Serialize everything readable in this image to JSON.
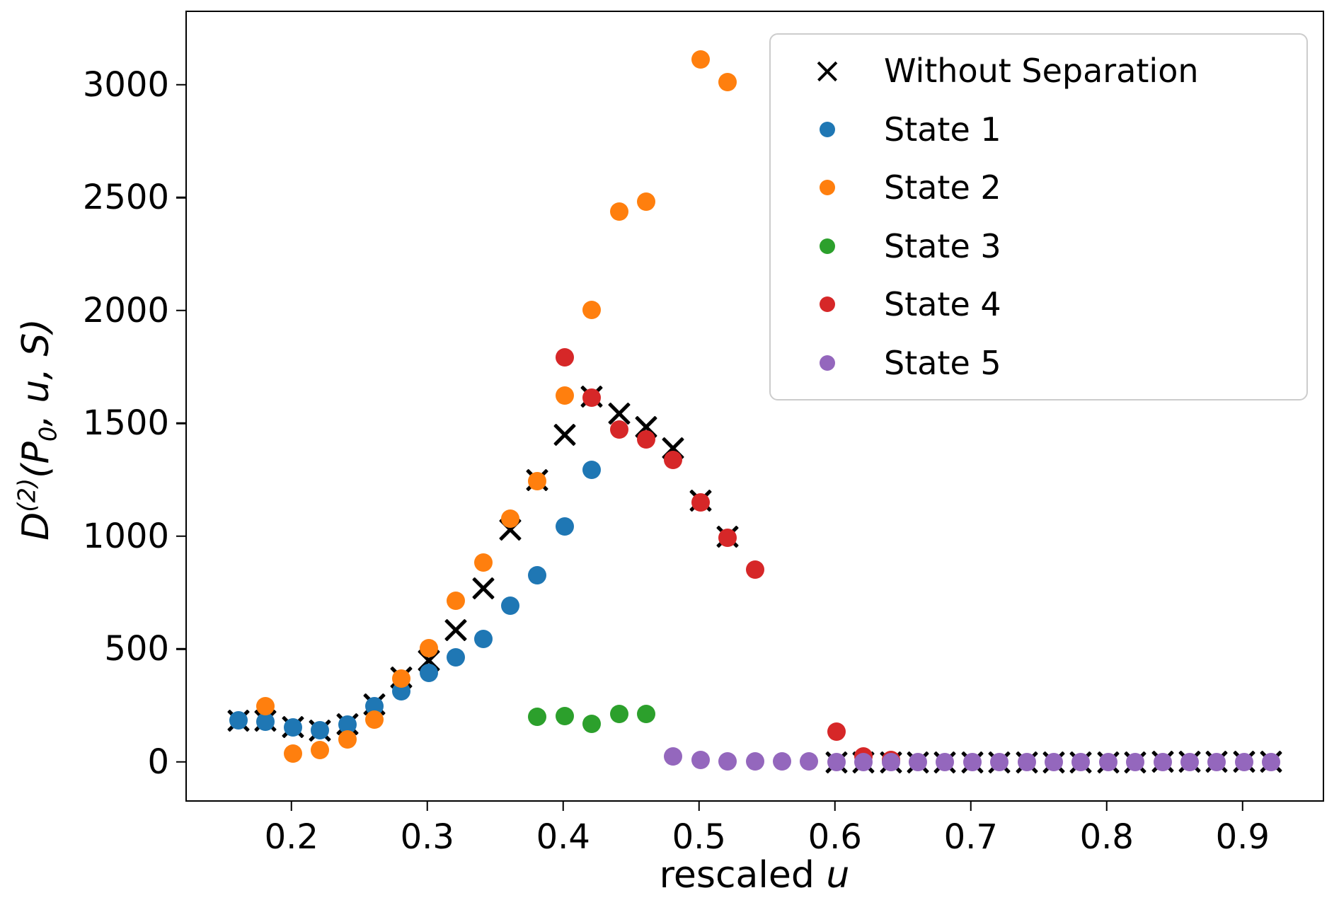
{
  "figure": {
    "background": "#ffffff",
    "frame_color": "#000000"
  },
  "axes": {
    "xlabel": {
      "text": "rescaled ",
      "var": "u"
    },
    "ylabel": {
      "base": "D",
      "sup": "(2)",
      "open": "(P",
      "sub": "0",
      "rest": ", u, S)"
    }
  },
  "legend": {
    "position": "upper right",
    "border_color": "#cccccc",
    "items": [
      {
        "label": "Without Separation",
        "marker": "x",
        "color": "#000000"
      },
      {
        "label": "State 1",
        "marker": "circle",
        "color": "#1f77b4"
      },
      {
        "label": "State 2",
        "marker": "circle",
        "color": "#ff7f0e"
      },
      {
        "label": "State 3",
        "marker": "circle",
        "color": "#2ca02c"
      },
      {
        "label": "State 4",
        "marker": "circle",
        "color": "#d62728"
      },
      {
        "label": "State 5",
        "marker": "circle",
        "color": "#9467bd"
      }
    ]
  },
  "chart_data": {
    "type": "scatter",
    "title": "",
    "xlabel": "rescaled u",
    "ylabel": "D^(2)(P_0, u, S)",
    "grid": false,
    "legend_position": "upper right",
    "xlim": [
      0.122,
      0.96
    ],
    "ylim": [
      -176,
      3329
    ],
    "xticks": [
      0.2,
      0.3,
      0.4,
      0.5,
      0.6,
      0.7,
      0.8,
      0.9
    ],
    "yticks": [
      0,
      500,
      1000,
      1500,
      2000,
      2500,
      3000
    ],
    "series": [
      {
        "name": "Without Separation",
        "marker": "x",
        "color": "#000000",
        "points": [
          [
            0.16,
            190
          ],
          [
            0.18,
            190
          ],
          [
            0.2,
            160
          ],
          [
            0.22,
            145
          ],
          [
            0.24,
            175
          ],
          [
            0.26,
            260
          ],
          [
            0.28,
            380
          ],
          [
            0.3,
            455
          ],
          [
            0.32,
            590
          ],
          [
            0.34,
            775
          ],
          [
            0.36,
            1035
          ],
          [
            0.38,
            1255
          ],
          [
            0.4,
            1455
          ],
          [
            0.42,
            1625
          ],
          [
            0.44,
            1550
          ],
          [
            0.46,
            1490
          ],
          [
            0.48,
            1395
          ],
          [
            0.5,
            1165
          ],
          [
            0.52,
            1005
          ],
          [
            0.6,
            5
          ],
          [
            0.62,
            5
          ],
          [
            0.64,
            5
          ],
          [
            0.66,
            5
          ],
          [
            0.68,
            5
          ],
          [
            0.7,
            5
          ],
          [
            0.72,
            5
          ],
          [
            0.74,
            5
          ],
          [
            0.76,
            5
          ],
          [
            0.78,
            5
          ],
          [
            0.8,
            5
          ],
          [
            0.82,
            5
          ],
          [
            0.84,
            8
          ],
          [
            0.86,
            8
          ],
          [
            0.88,
            8
          ],
          [
            0.9,
            8
          ],
          [
            0.92,
            8
          ]
        ]
      },
      {
        "name": "State 1",
        "marker": "circle",
        "color": "#1f77b4",
        "points": [
          [
            0.16,
            190
          ],
          [
            0.18,
            185
          ],
          [
            0.2,
            158
          ],
          [
            0.22,
            148
          ],
          [
            0.24,
            172
          ],
          [
            0.26,
            255
          ],
          [
            0.28,
            320
          ],
          [
            0.3,
            400
          ],
          [
            0.32,
            470
          ],
          [
            0.34,
            550
          ],
          [
            0.36,
            700
          ],
          [
            0.38,
            835
          ],
          [
            0.4,
            1050
          ],
          [
            0.42,
            1300
          ]
        ]
      },
      {
        "name": "State 2",
        "marker": "circle",
        "color": "#ff7f0e",
        "points": [
          [
            0.18,
            255
          ],
          [
            0.2,
            45
          ],
          [
            0.22,
            60
          ],
          [
            0.24,
            107
          ],
          [
            0.26,
            195
          ],
          [
            0.28,
            375
          ],
          [
            0.3,
            510
          ],
          [
            0.32,
            720
          ],
          [
            0.34,
            890
          ],
          [
            0.36,
            1085
          ],
          [
            0.38,
            1250
          ],
          [
            0.4,
            1630
          ],
          [
            0.42,
            2010
          ],
          [
            0.44,
            2445
          ],
          [
            0.46,
            2490
          ],
          [
            0.5,
            3120
          ],
          [
            0.52,
            3020
          ]
        ]
      },
      {
        "name": "State 3",
        "marker": "circle",
        "color": "#2ca02c",
        "points": [
          [
            0.38,
            205
          ],
          [
            0.4,
            210
          ],
          [
            0.42,
            175
          ],
          [
            0.44,
            220
          ],
          [
            0.46,
            220
          ]
        ]
      },
      {
        "name": "State 4",
        "marker": "circle",
        "color": "#d62728",
        "points": [
          [
            0.4,
            1800
          ],
          [
            0.42,
            1620
          ],
          [
            0.44,
            1480
          ],
          [
            0.46,
            1435
          ],
          [
            0.48,
            1345
          ],
          [
            0.5,
            1155
          ],
          [
            0.52,
            1000
          ],
          [
            0.54,
            860
          ],
          [
            0.6,
            140
          ],
          [
            0.62,
            30
          ],
          [
            0.64,
            15
          ]
        ]
      },
      {
        "name": "State 5",
        "marker": "circle",
        "color": "#9467bd",
        "points": [
          [
            0.48,
            30
          ],
          [
            0.5,
            15
          ],
          [
            0.52,
            8
          ],
          [
            0.54,
            8
          ],
          [
            0.56,
            10
          ],
          [
            0.58,
            8
          ],
          [
            0.6,
            6
          ],
          [
            0.62,
            6
          ],
          [
            0.64,
            6
          ],
          [
            0.66,
            5
          ],
          [
            0.68,
            5
          ],
          [
            0.7,
            5
          ],
          [
            0.72,
            5
          ],
          [
            0.74,
            5
          ],
          [
            0.76,
            5
          ],
          [
            0.78,
            5
          ],
          [
            0.8,
            5
          ],
          [
            0.82,
            5
          ],
          [
            0.84,
            6
          ],
          [
            0.86,
            6
          ],
          [
            0.88,
            6
          ],
          [
            0.9,
            6
          ],
          [
            0.92,
            6
          ]
        ]
      }
    ]
  }
}
